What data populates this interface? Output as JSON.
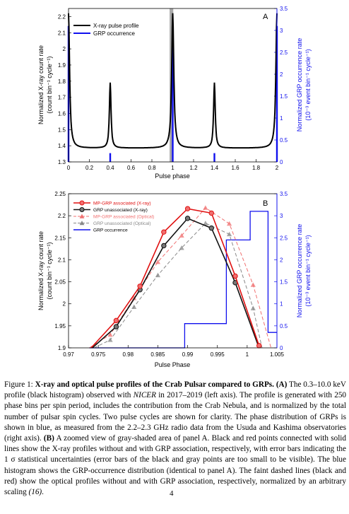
{
  "chart_data": [
    {
      "panel_label": "A",
      "type": "line",
      "xlabel": "Pulse phase",
      "ylabel_left": [
        "Normalized X-ray count rate",
        "(count bin⁻¹ cycle⁻¹)"
      ],
      "ylabel_right": [
        "Normalized GRP occurrence rate",
        "(10⁻³ event bin⁻¹ cycle⁻¹)"
      ],
      "xlim": [
        0,
        2
      ],
      "ylim_left": [
        1.3,
        2.25
      ],
      "ylim_right": [
        0,
        3.5
      ],
      "xticks": [
        "0",
        "0.2",
        "0.4",
        "0.6",
        "0.8",
        "1",
        "1.2",
        "1.4",
        "1.6",
        "1.8",
        "2"
      ],
      "yticks_left": [
        "1.3",
        "1.4",
        "1.5",
        "1.6",
        "1.7",
        "1.8",
        "1.9",
        "2",
        "2.1",
        "2.2"
      ],
      "yticks_right": [
        "0",
        "0.5",
        "1",
        "1.5",
        "2",
        "2.5",
        "3",
        "3.5"
      ],
      "legend": [
        "X-ray pulse profile",
        "GRP occurrence"
      ],
      "legend_position": "top-left",
      "shaded_region": [
        0.97,
        1.005
      ],
      "xray_profile": {
        "baseline": 1.385,
        "peaks": [
          {
            "phase": 0.0,
            "height": 2.22
          },
          {
            "phase": 0.4,
            "height": 1.79
          },
          {
            "phase": 1.0,
            "height": 2.22
          },
          {
            "phase": 1.4,
            "height": 1.79
          }
        ]
      },
      "grp_occurrence": [
        {
          "phase": 0.0,
          "value": 3.1
        },
        {
          "phase": 0.4,
          "value": 0.2
        },
        {
          "phase": 1.0,
          "value": 3.1
        },
        {
          "phase": 1.4,
          "value": 0.2
        },
        {
          "phase": 2.0,
          "value": 3.1
        }
      ]
    },
    {
      "panel_label": "B",
      "type": "line",
      "xlabel": "Pulse Phase",
      "ylabel_left": [
        "Normalized X-ray count rate",
        "(count bin⁻¹ cycle⁻¹)"
      ],
      "ylabel_right": [
        "Normalized GRP occurrence rate",
        "(10⁻³ event bin⁻¹ cycle⁻¹)"
      ],
      "xlim": [
        0.97,
        1.005
      ],
      "ylim_left": [
        1.9,
        2.25
      ],
      "ylim_right": [
        0,
        3.5
      ],
      "xticks": [
        "0.97",
        "0.975",
        "0.98",
        "0.985",
        "0.99",
        "0.995",
        "1",
        "1.005"
      ],
      "yticks_left": [
        "1.9",
        "1.95",
        "2",
        "2.05",
        "2.1",
        "2.15",
        "2.2",
        "2.25"
      ],
      "yticks_right": [
        "0",
        "0.5",
        "1",
        "1.5",
        "2",
        "2.5",
        "3",
        "3.5"
      ],
      "legend_position": "top-left",
      "series": [
        {
          "name": "MP-GRP associated (X-ray)",
          "color": "#e01010",
          "marker": "circle",
          "dash": false,
          "x": [
            0.9738,
            0.978,
            0.982,
            0.986,
            0.99,
            0.994,
            0.998,
            1.002
          ],
          "y": [
            1.9,
            1.962,
            2.04,
            2.163,
            2.216,
            2.206,
            2.063,
            1.905
          ]
        },
        {
          "name": "GRP unassociated (X-ray)",
          "color": "#111111",
          "marker": "circle",
          "dash": false,
          "x": [
            0.974,
            0.978,
            0.982,
            0.986,
            0.99,
            0.994,
            0.998,
            1.002
          ],
          "y": [
            1.9,
            1.948,
            2.032,
            2.132,
            2.194,
            2.172,
            2.048,
            1.9
          ]
        },
        {
          "name": "MP-GRP associated (Optical)",
          "color": "#f07070",
          "marker": "triangle",
          "dash": true,
          "x": [
            0.9735,
            0.977,
            0.981,
            0.985,
            0.989,
            0.993,
            0.997,
            1.001,
            1.004
          ],
          "y": [
            1.9,
            1.93,
            2.013,
            2.095,
            2.155,
            2.218,
            2.182,
            2.043,
            1.9
          ]
        },
        {
          "name": "GRP unassociated (Optical)",
          "color": "#888888",
          "marker": "triangle",
          "dash": true,
          "x": [
            0.9743,
            0.977,
            0.981,
            0.985,
            0.989,
            0.993,
            0.997,
            1.001,
            1.0025
          ],
          "y": [
            1.9,
            1.918,
            1.993,
            2.065,
            2.127,
            2.183,
            2.158,
            1.99,
            1.9
          ]
        },
        {
          "name": "GRP occurrence",
          "color": "#1010ee",
          "marker": "none",
          "dash": false,
          "steps": [
            {
              "x0": 0.9735,
              "x1": 0.9895,
              "value": 0.0
            },
            {
              "x0": 0.9895,
              "x1": 0.9965,
              "value": 0.55
            },
            {
              "x0": 0.9965,
              "x1": 1.0005,
              "value": 2.45
            },
            {
              "x0": 1.0005,
              "x1": 1.0035,
              "value": 3.1
            },
            {
              "x0": 1.0035,
              "x1": 1.005,
              "value": 0.35
            }
          ]
        }
      ]
    }
  ],
  "caption": {
    "figure_label": "Figure 1:",
    "title": "X-ray and optical pulse profiles of the Crab Pulsar compared to GRPs.",
    "panel_a_label": "(A)",
    "text_a_1": "The 0.3–10.0 keV profile (black histogram) observed with",
    "instrument": "NICER",
    "text_a_2": "in 2017–2019 (left axis). The profile is generated with 250 phase bins per spin period, includes the contribution from the Crab Nebula, and is normalized by the total number of pulsar spin cycles. Two pulse cycles are shown for clarity. The phase distribution of GRPs is shown in blue, as measured from the 2.2–2.3 GHz radio data from the Usuda and Kashima observatories (right axis).",
    "panel_b_label": "(B)",
    "text_b": "A zoomed view of gray-shaded area of panel A. Black and red points connected with solid lines show the X-ray profiles without and with GRP association, respectively, with error bars indicating the 1 σ statistical uncertainties (error bars of the black and gray points are too small to be visible). The blue histogram shows the GRP-occurrence distribution (identical to panel A). The faint dashed lines (black and red) show the optical profiles without and with GRP association, respectively, normalized by an arbitrary scaling",
    "citation": "(16)",
    "page_number": "4"
  }
}
